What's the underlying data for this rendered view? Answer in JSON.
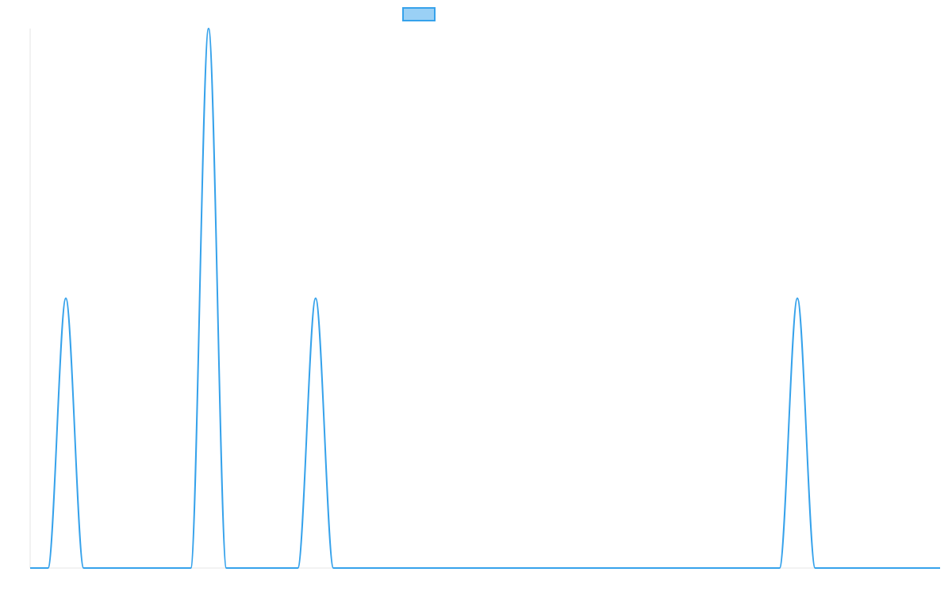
{
  "chart_data": {
    "type": "line",
    "title": "",
    "xlabel": "",
    "ylabel": "",
    "grid": false,
    "legend": {
      "position": "top-center",
      "entries": [
        {
          "name": "",
          "color": "#36a2eb",
          "fill": "#9ad0f5"
        }
      ]
    },
    "xlim": [
      0,
      51
    ],
    "ylim": [
      0,
      2
    ],
    "series": [
      {
        "name": "",
        "color": "#36a2eb",
        "x": [
          0,
          1,
          2,
          3,
          4,
          8,
          9,
          10,
          11,
          12,
          14,
          15,
          16,
          17,
          18,
          41,
          42,
          43,
          44,
          45,
          51
        ],
        "y": [
          0,
          0,
          1,
          0,
          0,
          0,
          0,
          2,
          0,
          0,
          0,
          0,
          1,
          0,
          0,
          0,
          0,
          1,
          0,
          0,
          0
        ]
      }
    ]
  }
}
